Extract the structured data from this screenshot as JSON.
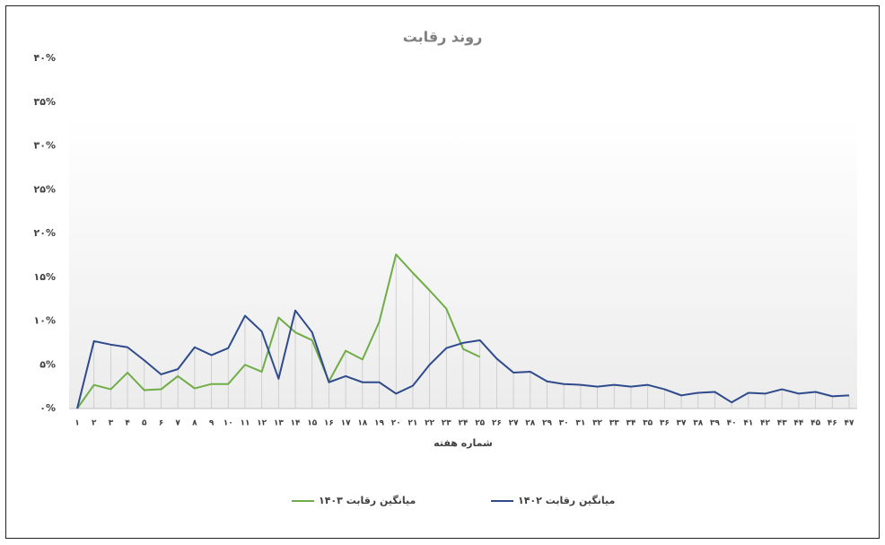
{
  "chart_data": {
    "type": "line",
    "title": "روند رقابت",
    "x_label": "شماره هفته",
    "categories": [
      "۱",
      "۲",
      "۳",
      "۴",
      "۵",
      "۶",
      "۷",
      "۸",
      "۹",
      "۱۰",
      "۱۱",
      "۱۲",
      "۱۳",
      "۱۴",
      "۱۵",
      "۱۶",
      "۱۷",
      "۱۸",
      "۱۹",
      "۲۰",
      "۲۱",
      "۲۲",
      "۲۳",
      "۲۴",
      "۲۵",
      "۲۶",
      "۲۷",
      "۲۸",
      "۲۹",
      "۳۰",
      "۳۱",
      "۳۲",
      "۳۳",
      "۳۴",
      "۳۵",
      "۳۶",
      "۳۷",
      "۳۸",
      "۳۹",
      "۴۰",
      "۴۱",
      "۴۲",
      "۴۳",
      "۴۴",
      "۴۵",
      "۴۶",
      "۴۷"
    ],
    "series": [
      {
        "name": "میانگین رقابت ۱۴۰۳",
        "color": "#70ad47",
        "values": [
          0,
          2.7,
          2.2,
          4.1,
          2.1,
          2.2,
          3.7,
          2.3,
          2.8,
          2.8,
          5.0,
          4.2,
          10.4,
          8.7,
          7.8,
          3.1,
          6.6,
          5.6,
          9.9,
          17.6,
          15.5,
          13.5,
          11.4,
          6.8,
          5.9,
          null,
          null,
          null,
          null,
          null,
          null,
          null,
          null,
          null,
          null,
          null,
          null,
          null,
          null,
          null,
          null,
          null,
          null,
          null,
          null,
          null,
          null
        ]
      },
      {
        "name": "میانگین رقابت ۱۴۰۲",
        "color": "#2f4b8c",
        "values": [
          0,
          7.7,
          7.3,
          7.0,
          5.5,
          3.9,
          4.5,
          7.0,
          6.1,
          6.9,
          10.6,
          8.8,
          3.4,
          11.2,
          8.7,
          3.0,
          3.7,
          3.0,
          3.0,
          1.7,
          2.6,
          5.0,
          6.9,
          7.5,
          7.8,
          5.7,
          4.1,
          4.2,
          3.1,
          2.8,
          2.7,
          2.5,
          2.7,
          2.5,
          2.7,
          2.2,
          1.5,
          1.8,
          1.9,
          0.7,
          1.8,
          1.7,
          2.2,
          1.7,
          1.9,
          1.4,
          1.5
        ]
      }
    ],
    "ylim": [
      0,
      40
    ],
    "yticks": [
      {
        "value": 0,
        "label": "۰%"
      },
      {
        "value": 5,
        "label": "۵%"
      },
      {
        "value": 10,
        "label": "۱۰%"
      },
      {
        "value": 15,
        "label": "۱۵%"
      },
      {
        "value": 20,
        "label": "۲۰%"
      },
      {
        "value": 25,
        "label": "۲۵%"
      },
      {
        "value": 30,
        "label": "۳۰%"
      },
      {
        "value": 35,
        "label": "۳۵%"
      },
      {
        "value": 40,
        "label": "۴۰%"
      }
    ],
    "drop_lines": true,
    "legend": "bottom"
  }
}
